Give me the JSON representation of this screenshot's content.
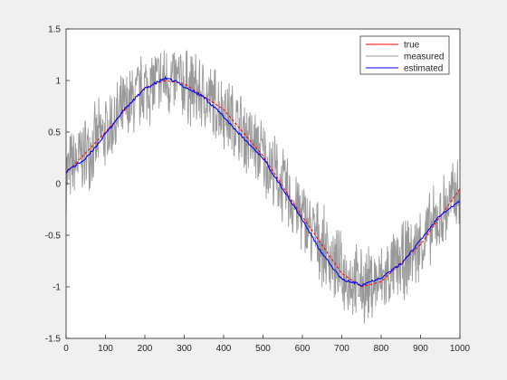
{
  "chart_data": {
    "type": "line",
    "xlim": [
      0,
      1000
    ],
    "ylim": [
      -1.5,
      1.5
    ],
    "x_ticks": [
      0,
      100,
      200,
      300,
      400,
      500,
      600,
      700,
      800,
      900,
      1000
    ],
    "y_ticks": [
      1.5,
      1,
      0.5,
      0,
      -0.5,
      -1,
      -1.5
    ],
    "x_tick_labels": [
      "0",
      "100",
      "200",
      "300",
      "400",
      "500",
      "600",
      "700",
      "800",
      "900",
      "1000"
    ],
    "y_tick_labels": [
      "1.5",
      "1",
      "0.5",
      "0",
      "-0.5",
      "-1",
      "-1.5"
    ],
    "grid": false,
    "legend_placement": "top-right",
    "series": [
      {
        "name": "true",
        "color": "#ff0000",
        "x": [
          0,
          100,
          200,
          250,
          300,
          400,
          500,
          600,
          700,
          750,
          800,
          900,
          1000
        ],
        "values": [
          0.1,
          0.5,
          0.93,
          1.0,
          0.97,
          0.72,
          0.27,
          -0.32,
          -0.87,
          -1.0,
          -0.95,
          -0.59,
          -0.05
        ]
      },
      {
        "name": "measured",
        "color": "#999999",
        "x": [
          0,
          100,
          200,
          250,
          300,
          400,
          500,
          600,
          700,
          750,
          800,
          900,
          1000
        ],
        "values": [
          0.1,
          0.5,
          0.93,
          1.0,
          0.97,
          0.72,
          0.27,
          -0.32,
          -0.87,
          -1.0,
          -0.95,
          -0.59,
          -0.05
        ],
        "noise_amplitude": 0.42
      },
      {
        "name": "estimated",
        "color": "#0000ff",
        "x": [
          0,
          50,
          100,
          150,
          200,
          250,
          280,
          300,
          350,
          400,
          450,
          500,
          550,
          600,
          650,
          700,
          750,
          800,
          850,
          900,
          950,
          1000
        ],
        "values": [
          0.12,
          0.24,
          0.48,
          0.73,
          0.92,
          1.02,
          0.99,
          0.94,
          0.84,
          0.65,
          0.44,
          0.25,
          -0.05,
          -0.35,
          -0.68,
          -0.93,
          -0.98,
          -0.91,
          -0.78,
          -0.55,
          -0.3,
          -0.17
        ]
      }
    ]
  }
}
